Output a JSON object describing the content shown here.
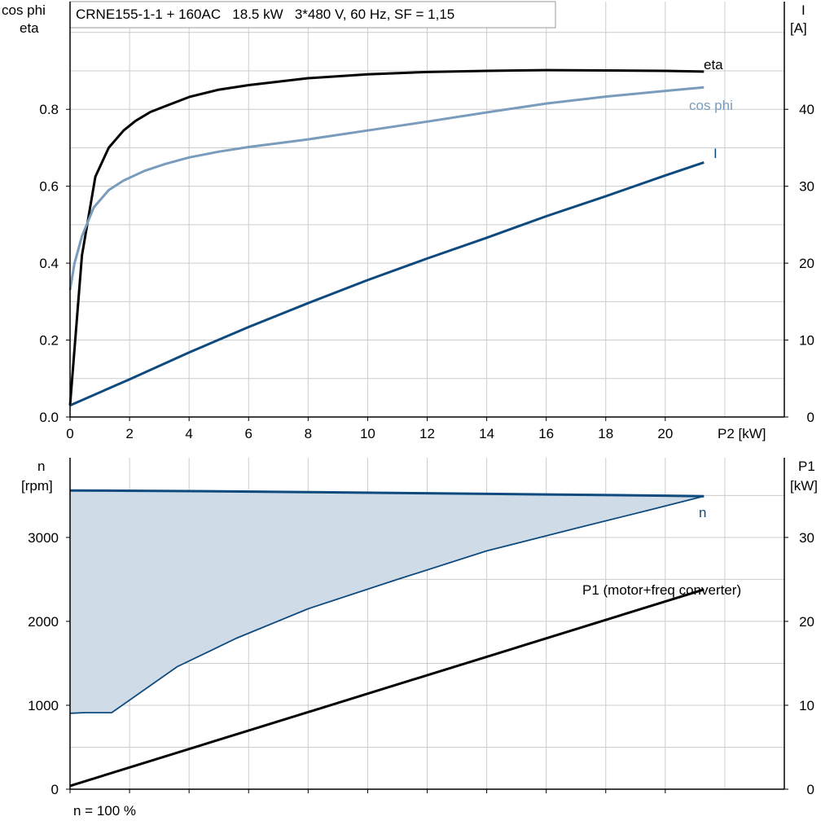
{
  "header": {
    "title": "CRNE155-1-1 + 160AC   18.5 kW   3*480 V, 60 Hz, SF = 1,15"
  },
  "footer": {
    "note": "n = 100 %"
  },
  "colors": {
    "eta": "#000000",
    "cos_phi": "#7a9cbc",
    "current": "#0e4a7e",
    "speed": "#0e4a7e",
    "speed_band_fill": "#cfdce8",
    "p1": "#000000",
    "grid": "#cccccc"
  },
  "chart_data": [
    {
      "type": "line",
      "grid": true,
      "xlabel": "P2 [kW]",
      "xlim": [
        0,
        24
      ],
      "xticks": [
        0,
        2,
        4,
        6,
        8,
        10,
        12,
        14,
        16,
        18,
        20
      ],
      "ylabel_left": [
        "cos phi",
        "eta"
      ],
      "ylim_left": [
        0,
        1.08
      ],
      "yticks_left": [
        0.0,
        0.2,
        0.4,
        0.6,
        0.8
      ],
      "ytick_labels_left": [
        "0.0",
        "0.2",
        "0.4",
        "0.6",
        "0.8"
      ],
      "ylabel_right": [
        "I",
        "[A]"
      ],
      "ylim_right": [
        0,
        54
      ],
      "yticks_right": [
        0,
        10,
        20,
        30,
        40
      ],
      "series": [
        {
          "name": "eta",
          "axis": "left",
          "color": "#000000",
          "x": [
            0,
            0.4,
            0.85,
            1.3,
            1.8,
            2.2,
            2.7,
            3.2,
            4,
            5,
            6,
            8,
            10,
            12,
            14,
            16,
            18,
            20,
            21.3
          ],
          "y": [
            0.03,
            0.42,
            0.625,
            0.7,
            0.745,
            0.77,
            0.793,
            0.808,
            0.832,
            0.851,
            0.863,
            0.881,
            0.891,
            0.897,
            0.9,
            0.902,
            0.901,
            0.9,
            0.898
          ]
        },
        {
          "name": "cos phi",
          "axis": "left",
          "color": "#7a9cbc",
          "x": [
            0,
            0.15,
            0.4,
            0.8,
            1.3,
            1.8,
            2.5,
            3.2,
            4,
            5,
            6,
            8,
            10,
            12,
            14,
            16,
            18,
            20,
            21.3
          ],
          "y": [
            0.33,
            0.4,
            0.47,
            0.545,
            0.59,
            0.615,
            0.64,
            0.658,
            0.675,
            0.69,
            0.702,
            0.722,
            0.745,
            0.768,
            0.792,
            0.815,
            0.833,
            0.848,
            0.857
          ]
        },
        {
          "name": "I",
          "axis": "right",
          "color": "#0e4a7e",
          "x": [
            0,
            2,
            4,
            6,
            8,
            10,
            12,
            14,
            16,
            18,
            20,
            21.3
          ],
          "y": [
            1.5,
            4.9,
            8.4,
            11.7,
            14.8,
            17.8,
            20.6,
            23.3,
            26.1,
            28.7,
            31.4,
            33.1
          ]
        }
      ],
      "series_labels": [
        "eta",
        "cos phi",
        "I"
      ]
    },
    {
      "type": "line",
      "grid": true,
      "xlim": [
        0,
        24
      ],
      "ylabel_left": [
        "n",
        "[rpm]"
      ],
      "ylim_left": [
        0,
        3950
      ],
      "yticks_left": [
        0,
        1000,
        2000,
        3000
      ],
      "ylabel_right": [
        "P1",
        "[kW]"
      ],
      "ylim_right": [
        0,
        39.5
      ],
      "yticks_right": [
        0,
        10,
        20,
        30
      ],
      "series": [
        {
          "name": "n",
          "axis": "left",
          "color": "#0e4a7e",
          "x": [
            0,
            4,
            8,
            12,
            16,
            20,
            21.3
          ],
          "y": [
            3560,
            3552,
            3540,
            3527,
            3512,
            3498,
            3492
          ]
        },
        {
          "name": "n lower limit",
          "axis": "left",
          "color": "#0e4a7e",
          "x": [
            0,
            0.5,
            1.4,
            3.6,
            5.6,
            8,
            11,
            14,
            17,
            19.5,
            21.3
          ],
          "y": [
            905,
            912,
            912,
            1460,
            1800,
            2150,
            2500,
            2840,
            3110,
            3330,
            3492
          ]
        },
        {
          "name": "P1 (motor+freq converter)",
          "axis": "right",
          "color": "#000000",
          "x": [
            0,
            21.3
          ],
          "y": [
            0.4,
            23.8
          ]
        }
      ],
      "series_labels": [
        "n",
        "P1 (motor+freq converter)"
      ]
    }
  ]
}
